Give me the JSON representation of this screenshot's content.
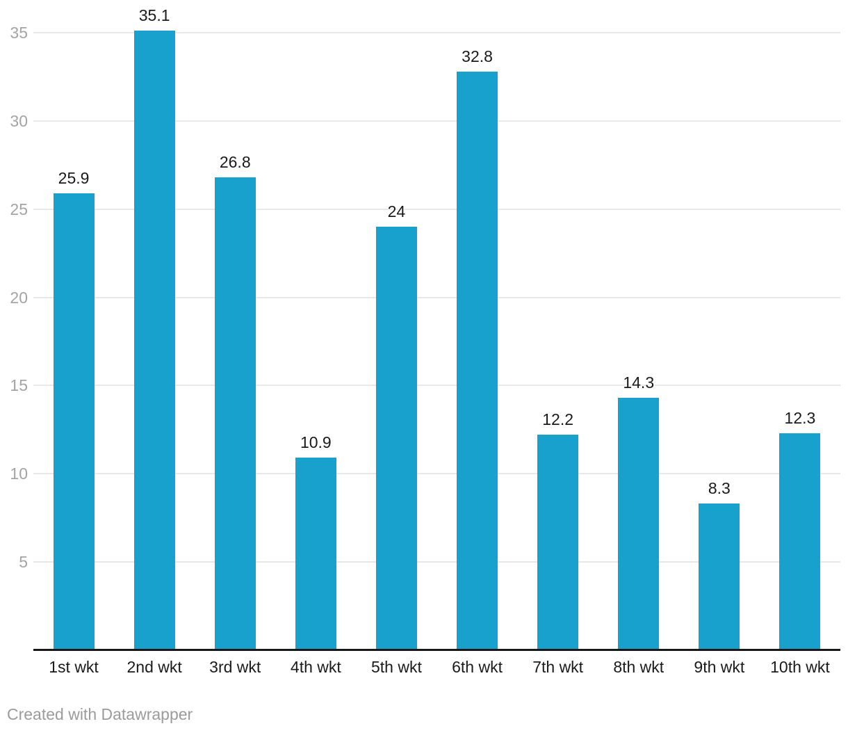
{
  "chart_data": {
    "type": "bar",
    "title": "",
    "xlabel": "",
    "ylabel": "",
    "categories": [
      "1st wkt",
      "2nd wkt",
      "3rd wkt",
      "4th wkt",
      "5th wkt",
      "6th wkt",
      "7th wkt",
      "8th wkt",
      "9th wkt",
      "10th wkt"
    ],
    "values": [
      25.9,
      35.1,
      26.8,
      10.9,
      24,
      32.8,
      12.2,
      14.3,
      8.3,
      12.3
    ],
    "value_labels": [
      "25.9",
      "35.1",
      "26.8",
      "10.9",
      "24",
      "32.8",
      "12.2",
      "14.3",
      "8.3",
      "12.3"
    ],
    "ylim": [
      0,
      35
    ],
    "yticks": [
      5,
      10,
      15,
      20,
      25,
      30,
      35
    ],
    "grid": "horizontal",
    "legend_position": "none",
    "colors": {
      "bar": "#18a1cd",
      "value_label": "#1a1a1a",
      "category_label": "#1a1a1a",
      "ytick_label": "#a4a4a4",
      "gridline": "#e8e8e8",
      "axis_line": "#171717",
      "background": "#ffffff",
      "footer_text": "#9b9b9b"
    }
  },
  "footer": {
    "credit": "Created with Datawrapper"
  }
}
